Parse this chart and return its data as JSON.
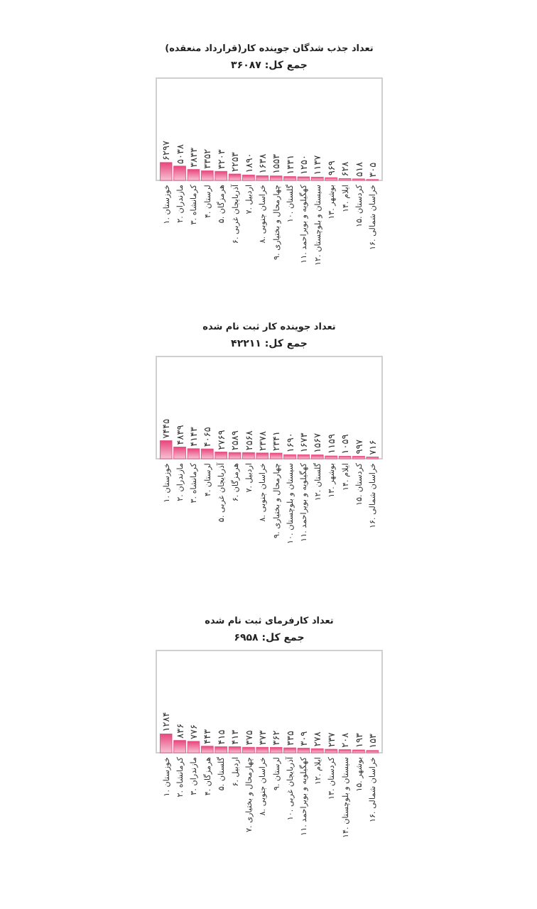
{
  "chart_data": [
    {
      "type": "bar",
      "title": "تعداد جذب شدگان جوینده کار(قرارداد منعقده)",
      "subtitle": "جمع کل: ۳۶۰۸۷",
      "categories": [
        "۱. خوزستان",
        "۲. مازندران",
        "۳. کرمانشاه",
        "۴. لرستان",
        "۵. هرمزگان",
        "۶. آذربایجان غربی",
        "۷. اردبیل",
        "۸. خراسان جنوبی",
        "۹. چهارمحال و بختیاری",
        "۱۰. گلستان",
        "۱۱. کهگیلویه و بویراحمد",
        "۱۲. سیستان و بلوچستان",
        "۱۳. بوشهر",
        "۱۴. ایلام",
        "۱۵. کردستان",
        "۱۶. خراسان شمالی"
      ],
      "values": [
        6297,
        5038,
        3833,
        3352,
        3203,
        2253,
        1890,
        1638,
        1553,
        1331,
        1250,
        1137,
        969,
        628,
        518,
        305
      ],
      "value_labels": [
        "۶۲۹۷",
        "۵۰۳۸",
        "۳۸۳۳",
        "۳۳۵۲",
        "۳۲۰۳",
        "۲۲۵۳",
        "۱۸۹۰",
        "۱۶۳۸",
        "۱۵۵۳",
        "۱۳۳۱",
        "۱۲۵۰",
        "۱۱۳۷",
        "۹۶۹",
        "۶۲۸",
        "۵۱۸",
        "۳۰۵"
      ],
      "color": "#e8467c",
      "ylim": [
        0,
        36087
      ]
    },
    {
      "type": "bar",
      "title": "تعداد جوینده کار ثبت نام شده",
      "subtitle": "جمع کل: ۴۲۲۱۱",
      "categories": [
        "۱. خوزستان",
        "۲. مازندران",
        "۳. کرمانشاه",
        "۴. لرستان",
        "۵. آذربایجان غربی",
        "۶. هرمزگان",
        "۷. اردبیل",
        "۸. خراسان جنوبی",
        "۹. چهارمحال و بختیاری",
        "۱۰. سیستان و بلوچستان",
        "۱۱. کهگیلویه و بویراحمد",
        "۱۲. گلستان",
        "۱۳. بوشهر",
        "۱۴. ایلام",
        "۱۵. کردستان",
        "۱۶. خراسان شمالی"
      ],
      "values": [
        7445,
        4839,
        4143,
        4065,
        2769,
        2589,
        2568,
        2378,
        2341,
        1690,
        1673,
        1567,
        1159,
        1059,
        997,
        716
      ],
      "value_labels": [
        "۷۴۴۵",
        "۴۸۳۹",
        "۴۱۴۳",
        "۴۰۶۵",
        "۲۷۶۹",
        "۲۵۸۹",
        "۲۵۶۸",
        "۲۳۷۸",
        "۲۳۴۱",
        "۱۶۹۰",
        "۱۶۷۳",
        "۱۵۶۷",
        "۱۱۵۹",
        "۱۰۵۹",
        "۹۹۷",
        "۷۱۶"
      ],
      "color": "#e8467c",
      "ylim": [
        0,
        42211
      ]
    },
    {
      "type": "bar",
      "title": "تعداد کارفرمای ثبت نام شده",
      "subtitle": "جمع کل: ۶۹۵۸",
      "categories": [
        "۱. خوزستان",
        "۲. کرمانشاه",
        "۳. مازندران",
        "۴. هرمزگان",
        "۵. گلستان",
        "۶. اردبیل",
        "۷. چهارمحال و بختیاری",
        "۸. خراسان جنوبی",
        "۹. لرستان",
        "۱۰. آذربایجان غربی",
        "۱۱. کهگیلویه و بویراحمد",
        "۱۲. ایلام",
        "۱۳. کردستان",
        "۱۴. سیستان و بلوچستان",
        "۱۵. بوشهر",
        "۱۶. خراسان شمالی"
      ],
      "values": [
        1284,
        836,
        776,
        443,
        415,
        413,
        375,
        373,
        362,
        335,
        309,
        278,
        237,
        208,
        193,
        153
      ],
      "value_labels": [
        "۱۲۸۴",
        "۸۳۶",
        "۷۷۶",
        "۴۴۳",
        "۴۱۵",
        "۴۱۳",
        "۳۷۵",
        "۳۷۳",
        "۳۶۲",
        "۳۳۵",
        "۳۰۹",
        "۲۷۸",
        "۲۳۷",
        "۲۰۸",
        "۱۹۳",
        "۱۵۳"
      ],
      "color": "#e8467c",
      "ylim": [
        0,
        6958
      ]
    }
  ]
}
